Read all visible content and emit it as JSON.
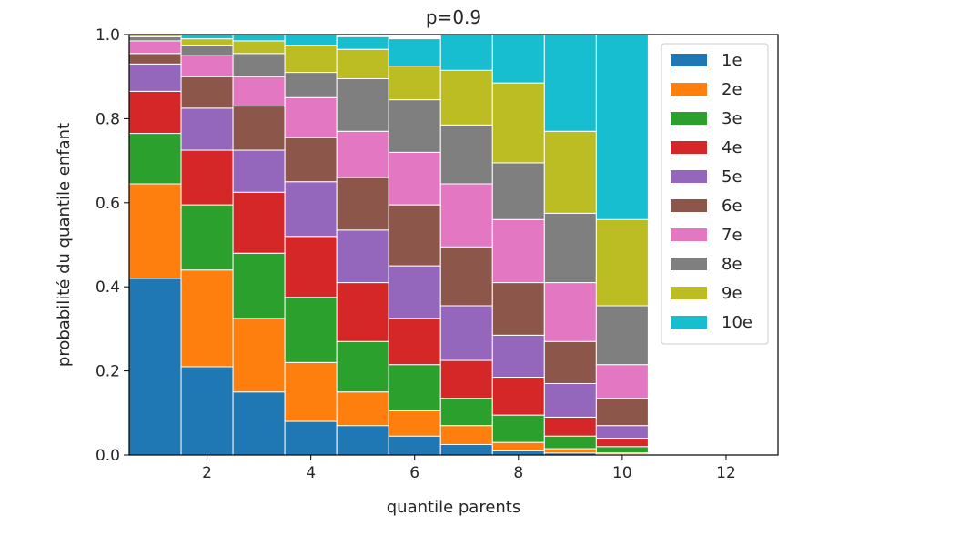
{
  "chart_data": {
    "type": "bar",
    "stacked": true,
    "title": "p=0.9",
    "xlabel": "quantile parents",
    "ylabel": "probabilité du quantile enfant",
    "xlim": [
      0.5,
      13.0
    ],
    "ylim": [
      0.0,
      1.0
    ],
    "xticks": [
      "2",
      "4",
      "6",
      "8",
      "10",
      "12"
    ],
    "yticks": [
      "0.0",
      "0.2",
      "0.4",
      "0.6",
      "0.8",
      "1.0"
    ],
    "legend_position": "upper-right",
    "grid": false,
    "categories": [
      1,
      2,
      3,
      4,
      5,
      6,
      7,
      8,
      9,
      10
    ],
    "series": [
      {
        "name": "1e",
        "color": "#1f77b4",
        "values": [
          0.42,
          0.21,
          0.15,
          0.08,
          0.07,
          0.045,
          0.025,
          0.01,
          0.005,
          0.002
        ]
      },
      {
        "name": "2e",
        "color": "#ff7f0e",
        "values": [
          0.225,
          0.23,
          0.175,
          0.14,
          0.08,
          0.06,
          0.045,
          0.02,
          0.01,
          0.003
        ]
      },
      {
        "name": "3e",
        "color": "#2ca02c",
        "values": [
          0.12,
          0.155,
          0.155,
          0.155,
          0.12,
          0.11,
          0.065,
          0.065,
          0.03,
          0.015
        ]
      },
      {
        "name": "4e",
        "color": "#d62728",
        "values": [
          0.1,
          0.13,
          0.145,
          0.145,
          0.14,
          0.11,
          0.09,
          0.09,
          0.045,
          0.02
        ]
      },
      {
        "name": "5e",
        "color": "#9467bd",
        "values": [
          0.065,
          0.1,
          0.1,
          0.13,
          0.125,
          0.125,
          0.13,
          0.1,
          0.08,
          0.03
        ]
      },
      {
        "name": "6e",
        "color": "#8c564b",
        "values": [
          0.025,
          0.075,
          0.105,
          0.105,
          0.125,
          0.145,
          0.14,
          0.125,
          0.1,
          0.065
        ]
      },
      {
        "name": "7e",
        "color": "#e377c2",
        "values": [
          0.03,
          0.05,
          0.07,
          0.095,
          0.11,
          0.125,
          0.15,
          0.15,
          0.14,
          0.08
        ]
      },
      {
        "name": "8e",
        "color": "#7f7f7f",
        "values": [
          0.01,
          0.025,
          0.055,
          0.06,
          0.125,
          0.125,
          0.14,
          0.135,
          0.165,
          0.14
        ]
      },
      {
        "name": "9e",
        "color": "#bcbd22",
        "values": [
          0.005,
          0.015,
          0.03,
          0.065,
          0.07,
          0.08,
          0.13,
          0.19,
          0.195,
          0.205
        ]
      },
      {
        "name": "10e",
        "color": "#17becf",
        "values": [
          0.0,
          0.01,
          0.015,
          0.025,
          0.03,
          0.065,
          0.085,
          0.115,
          0.23,
          0.44
        ]
      }
    ]
  }
}
